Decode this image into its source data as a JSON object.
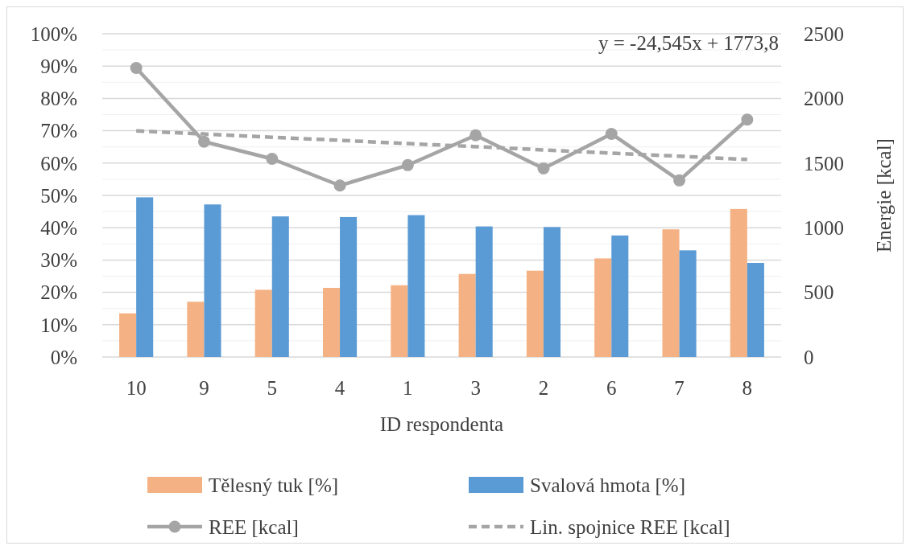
{
  "chart_data": {
    "type": "bar",
    "xlabel": "ID respondenta",
    "y2label": "Energie [kcal]",
    "categories": [
      "10",
      "9",
      "5",
      "4",
      "1",
      "3",
      "2",
      "6",
      "7",
      "8"
    ],
    "series": [
      {
        "name": "Tělesný tuk [%]",
        "color": "#f4b183",
        "values": [
          13.5,
          17.1,
          20.8,
          21.4,
          22.2,
          25.7,
          26.7,
          30.5,
          39.5,
          45.8
        ]
      },
      {
        "name": "Svalová hmota [%]",
        "color": "#5b9bd5",
        "values": [
          49.4,
          47.2,
          43.5,
          43.3,
          43.9,
          40.4,
          40.2,
          37.6,
          33.0,
          29.1
        ]
      },
      {
        "name": "REE [kcal]",
        "type": "line",
        "axis": "y2",
        "color": "#a5a5a5",
        "marker": "circle",
        "line_style": "solid",
        "values": [
          2236,
          1665,
          1533,
          1326,
          1484,
          1715,
          1458,
          1726,
          1366,
          1836
        ]
      },
      {
        "name": "Lin. spojnice REE [kcal]",
        "type": "line",
        "axis": "y2",
        "color": "#a5a5a5",
        "marker": "none",
        "line_style": "dashed",
        "values": [
          1749,
          1725,
          1700,
          1676,
          1651,
          1627,
          1602,
          1577,
          1553,
          1528
        ]
      }
    ],
    "ylim": [
      0,
      100
    ],
    "yticks": [
      {
        "value": 0,
        "label": "0%"
      },
      {
        "value": 5,
        "label": null
      },
      {
        "value": 10,
        "label": "10%"
      },
      {
        "value": 15,
        "label": null
      },
      {
        "value": 20,
        "label": "20%"
      },
      {
        "value": 25,
        "label": null
      },
      {
        "value": 30,
        "label": "30%"
      },
      {
        "value": 35,
        "label": null
      },
      {
        "value": 40,
        "label": "40%"
      },
      {
        "value": 45,
        "label": null
      },
      {
        "value": 50,
        "label": "50%"
      },
      {
        "value": 55,
        "label": null
      },
      {
        "value": 60,
        "label": "60%"
      },
      {
        "value": 65,
        "label": null
      },
      {
        "value": 70,
        "label": "70%"
      },
      {
        "value": 75,
        "label": null
      },
      {
        "value": 80,
        "label": "80%"
      },
      {
        "value": 85,
        "label": null
      },
      {
        "value": 90,
        "label": "90%"
      },
      {
        "value": 95,
        "label": null
      },
      {
        "value": 100,
        "label": "100%"
      }
    ],
    "y2lim": [
      0,
      2500
    ],
    "y2ticks": [
      0,
      500,
      1000,
      1500,
      2000,
      2500
    ],
    "annotations": [
      "y = -24,545x + 1773,8"
    ],
    "grid": "y",
    "legend": "bottom"
  }
}
